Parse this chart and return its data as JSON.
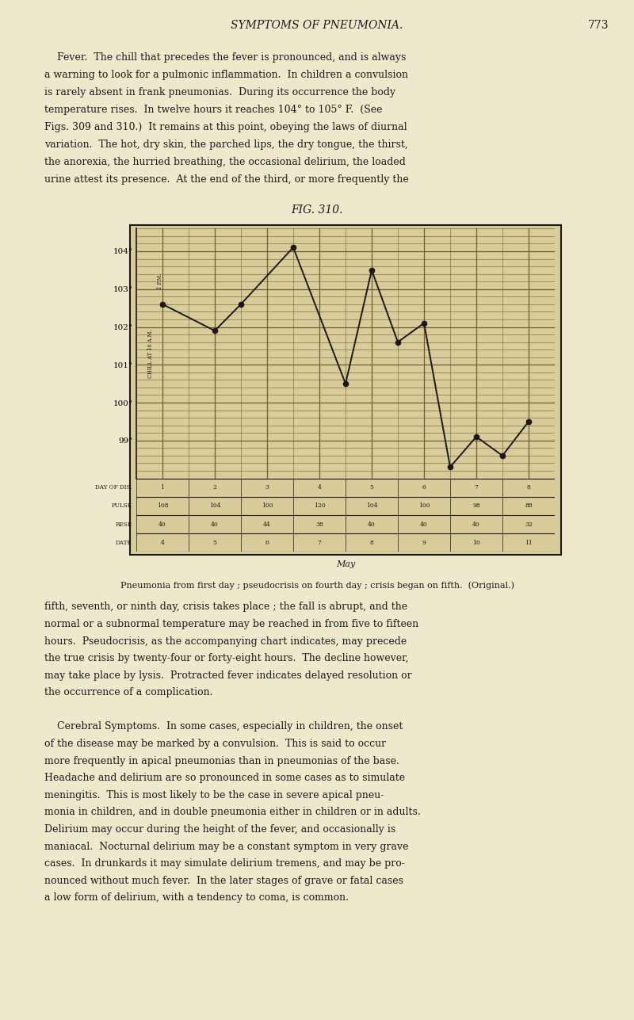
{
  "title": "FIG. 310.",
  "header_text": "SYMPTOMS OF PNEUMONIA.",
  "page_num_text": "773",
  "background_color": "#f0e8cc",
  "chart_bg": "#d8cc9a",
  "grid_major_color": "#8a7840",
  "grid_minor_color": "#b0a060",
  "line_color": "#1a1a1a",
  "text_color": "#1a1a1a",
  "temps_x": [
    1.0,
    2.0,
    2.5,
    3.5,
    4.5,
    5.0,
    5.5,
    6.0,
    6.5,
    7.0,
    7.5,
    8.0
  ],
  "temps_y": [
    102.6,
    101.9,
    102.6,
    104.1,
    100.5,
    103.5,
    101.6,
    102.1,
    98.3,
    99.1,
    98.6,
    99.5
  ],
  "ymin": 98.0,
  "ymax": 104.6,
  "yticks": [
    99,
    100,
    101,
    102,
    103,
    104
  ],
  "ytick_labels": [
    "99°",
    "100°",
    "101°",
    "102°",
    "103°",
    "104°"
  ],
  "table_day_of_dis": [
    "1",
    "2",
    "3",
    "4",
    "5",
    "6",
    "7",
    "8"
  ],
  "table_pulse": [
    "108",
    "104",
    "100",
    "120",
    "104",
    "100",
    "98",
    "88"
  ],
  "table_resp": [
    "40",
    "40",
    "44",
    "38",
    "40",
    "40",
    "40",
    "32"
  ],
  "table_date": [
    "4",
    "5",
    "6",
    "7",
    "8",
    "9",
    "10",
    "11"
  ],
  "chill_label": "CHILL AT 10 A.M.",
  "pm_label": "1 P.M.",
  "month_label": "May",
  "caption": "Pneumonia from first day ; pseudocrisis on fourth day ; crisis began on fifth.  (Original.)",
  "body_text_top_lines": [
    "    Fever.  The chill that precedes the fever is pronounced, and is always",
    "a warning to look for a pulmonic inflammation.  In children a convulsion",
    "is rarely absent in frank pneumonias.  During its occurrence the body",
    "temperature rises.  In twelve hours it reaches 104° to 105° F.  (See",
    "Figs. 309 and 310.)  It remains at this point, obeying the laws of diurnal",
    "variation.  The hot, dry skin, the parched lips, the dry tongue, the thirst,",
    "the anorexia, the hurried breathing, the occasional delirium, the loaded",
    "urine attest its presence.  At the end of the third, or more frequently the"
  ],
  "body_text_bot_lines": [
    "fifth, seventh, or ninth day, crisis takes place ; the fall is abrupt, and the",
    "normal or a subnormal temperature may be reached in from five to fifteen",
    "hours.  Pseudocrisis, as the accompanying chart indicates, may precede",
    "the true crisis by twenty-four or forty-eight hours.  The decline however,",
    "may take place by lysis.  Protracted fever indicates delayed resolution or",
    "the occurrence of a complication.",
    "",
    "    Cerebral Symptoms.  In some cases, especially in children, the onset",
    "of the disease may be marked by a convulsion.  This is said to occur",
    "more frequently in apical pneumonias than in pneumonias of the base.",
    "Headache and delirium are so pronounced in some cases as to simulate",
    "meningitis.  This is most likely to be the case in severe apical pneu-",
    "monia in children, and in double pneumonia either in children or in adults.",
    "Delirium may occur during the height of the fever, and occasionally is",
    "maniacal.  Nocturnal delirium may be a constant symptom in very grave",
    "cases.  In drunkards it may simulate delirium tremens, and may be pro-",
    "nounced without much fever.  In the later stages of grave or fatal cases",
    "a low form of delirium, with a tendency to coma, is common."
  ]
}
